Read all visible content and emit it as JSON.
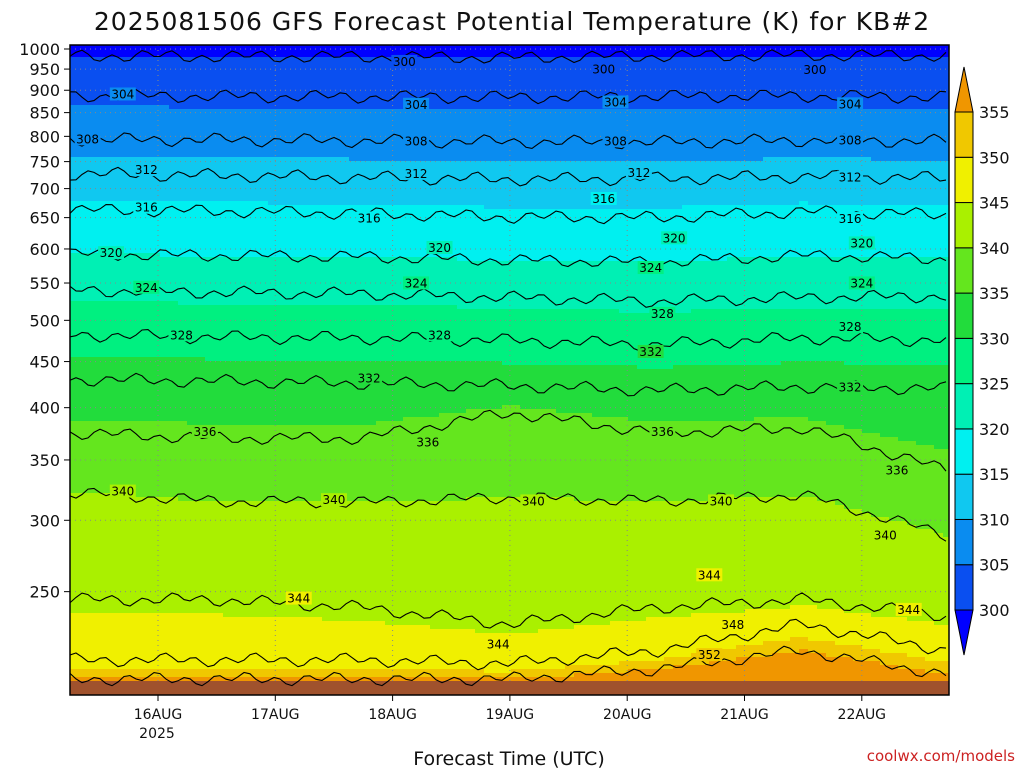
{
  "chart_data": {
    "type": "heatmap",
    "title": "2025081506 GFS Forecast Potential Temperature (K) for KB#2",
    "xlabel": "Forecast Time (UTC)",
    "ylabel": "",
    "y_scale": "log (pressure)",
    "ylim": [
      1000,
      200
    ],
    "x_ticks": [
      "16AUG",
      "17AUG",
      "18AUG",
      "19AUG",
      "20AUG",
      "21AUG",
      "22AUG"
    ],
    "x_year_label": "2025",
    "y_ticks": [
      250,
      300,
      350,
      400,
      450,
      500,
      550,
      600,
      650,
      700,
      750,
      800,
      850,
      900,
      950,
      1000
    ],
    "colorbar": {
      "ticks": [
        300,
        305,
        310,
        315,
        320,
        325,
        330,
        335,
        340,
        345,
        350,
        355
      ],
      "colors": [
        "#0000ff",
        "#0a4ff0",
        "#0a8cf0",
        "#10c8f0",
        "#00f0f0",
        "#00f0b4",
        "#00f080",
        "#22dc3c",
        "#64e61e",
        "#aaf000",
        "#f0f000",
        "#f0c800",
        "#f09600"
      ],
      "extend": "both"
    },
    "grid": true,
    "contour_interval": 2,
    "series": [
      {
        "name": "300",
        "values": [
          983,
          981,
          980,
          978,
          982,
          984,
          983
        ]
      },
      {
        "name": "304",
        "values": [
          888,
          886,
          885,
          884,
          886,
          887,
          884
        ]
      },
      {
        "name": "308",
        "values": [
          794,
          793,
          791,
          789,
          788,
          792,
          790
        ]
      },
      {
        "name": "312",
        "values": [
          727,
          724,
          720,
          717,
          718,
          722,
          719
        ]
      },
      {
        "name": "316",
        "values": [
          663,
          661,
          657,
          651,
          650,
          660,
          655
        ]
      },
      {
        "name": "320",
        "values": [
          592,
          590,
          588,
          583,
          580,
          590,
          585
        ]
      },
      {
        "name": "324",
        "values": [
          540,
          537,
          535,
          530,
          525,
          530,
          532
        ]
      },
      {
        "name": "328",
        "values": [
          482,
          479,
          478,
          475,
          470,
          478,
          475
        ]
      },
      {
        "name": "332",
        "values": [
          430,
          428,
          426,
          423,
          418,
          422,
          420
        ]
      },
      {
        "name": "336",
        "values": [
          375,
          370,
          370,
          395,
          375,
          380,
          340
        ]
      },
      {
        "name": "340",
        "values": [
          322,
          315,
          314,
          318,
          315,
          320,
          288
        ]
      },
      {
        "name": "344",
        "values": [
          245,
          245,
          240,
          230,
          240,
          245,
          235
        ]
      },
      {
        "name": "348",
        "values": [
          210,
          210,
          210,
          208,
          215,
          230,
          215
        ]
      },
      {
        "name": "352",
        "values": [
          200,
          200,
          200,
          200,
          205,
          215,
          202
        ]
      }
    ],
    "contour_labels": [
      {
        "text": "344",
        "x": "18.9AUG",
        "p": 218
      },
      {
        "text": "352",
        "x": "20.7AUG",
        "p": 212
      },
      {
        "text": "348",
        "x": "20.9AUG",
        "p": 229
      },
      {
        "text": "344",
        "x": "17.2AUG",
        "p": 245
      },
      {
        "text": "344",
        "x": "20.7AUG",
        "p": 260
      },
      {
        "text": "344",
        "x": "22.4AUG",
        "p": 238
      },
      {
        "text": "340",
        "x": "22.2AUG",
        "p": 288
      },
      {
        "text": "340",
        "x": "15.7AUG",
        "p": 322
      },
      {
        "text": "340",
        "x": "17.5AUG",
        "p": 315
      },
      {
        "text": "340",
        "x": "19.2AUG",
        "p": 314
      },
      {
        "text": "340",
        "x": "20.8AUG",
        "p": 314
      },
      {
        "text": "336",
        "x": "22.3AUG",
        "p": 340
      },
      {
        "text": "336",
        "x": "16.4AUG",
        "p": 375
      },
      {
        "text": "336",
        "x": "18.3AUG",
        "p": 365
      },
      {
        "text": "336",
        "x": "20.3AUG",
        "p": 375
      },
      {
        "text": "332",
        "x": "21.9AUG",
        "p": 420
      },
      {
        "text": "332",
        "x": "17.8AUG",
        "p": 430
      },
      {
        "text": "332",
        "x": "20.2AUG",
        "p": 460
      },
      {
        "text": "328",
        "x": "16.2AUG",
        "p": 480
      },
      {
        "text": "328",
        "x": "18.4AUG",
        "p": 480
      },
      {
        "text": "328",
        "x": "21.9AUG",
        "p": 490
      },
      {
        "text": "328",
        "x": "20.3AUG",
        "p": 507
      },
      {
        "text": "324",
        "x": "15.9AUG",
        "p": 542
      },
      {
        "text": "324",
        "x": "18.2AUG",
        "p": 548
      },
      {
        "text": "324",
        "x": "22.0AUG",
        "p": 548
      },
      {
        "text": "324",
        "x": "20.2AUG",
        "p": 570
      },
      {
        "text": "320",
        "x": "15.6AUG",
        "p": 592
      },
      {
        "text": "320",
        "x": "18.4AUG",
        "p": 600
      },
      {
        "text": "320",
        "x": "20.4AUG",
        "p": 615
      },
      {
        "text": "320",
        "x": "22.0AUG",
        "p": 607
      },
      {
        "text": "316",
        "x": "17.8AUG",
        "p": 647
      },
      {
        "text": "316",
        "x": "21.9AUG",
        "p": 646
      },
      {
        "text": "316",
        "x": "15.9AUG",
        "p": 665
      },
      {
        "text": "316",
        "x": "19.8AUG",
        "p": 680
      },
      {
        "text": "312",
        "x": "15.9AUG",
        "p": 732
      },
      {
        "text": "312",
        "x": "18.2AUG",
        "p": 725
      },
      {
        "text": "312",
        "x": "20.1AUG",
        "p": 727
      },
      {
        "text": "312",
        "x": "21.9AUG",
        "p": 718
      },
      {
        "text": "308",
        "x": "15.4AUG",
        "p": 792
      },
      {
        "text": "308",
        "x": "18.2AUG",
        "p": 788
      },
      {
        "text": "308",
        "x": "19.9AUG",
        "p": 788
      },
      {
        "text": "308",
        "x": "21.9AUG",
        "p": 790
      },
      {
        "text": "304",
        "x": "15.7AUG",
        "p": 888
      },
      {
        "text": "304",
        "x": "18.2AUG",
        "p": 865
      },
      {
        "text": "304",
        "x": "19.9AUG",
        "p": 870
      },
      {
        "text": "304",
        "x": "21.9AUG",
        "p": 866
      },
      {
        "text": "300",
        "x": "18.1AUG",
        "p": 965
      },
      {
        "text": "300",
        "x": "19.8AUG",
        "p": 946
      },
      {
        "text": "300",
        "x": "21.6AUG",
        "p": 945
      }
    ]
  },
  "footer": {
    "year": "2025",
    "credit": "coolwx.com/models"
  },
  "colors": {
    "ground": "#a0522d",
    "contour": "#000000",
    "grid": "#888888"
  }
}
